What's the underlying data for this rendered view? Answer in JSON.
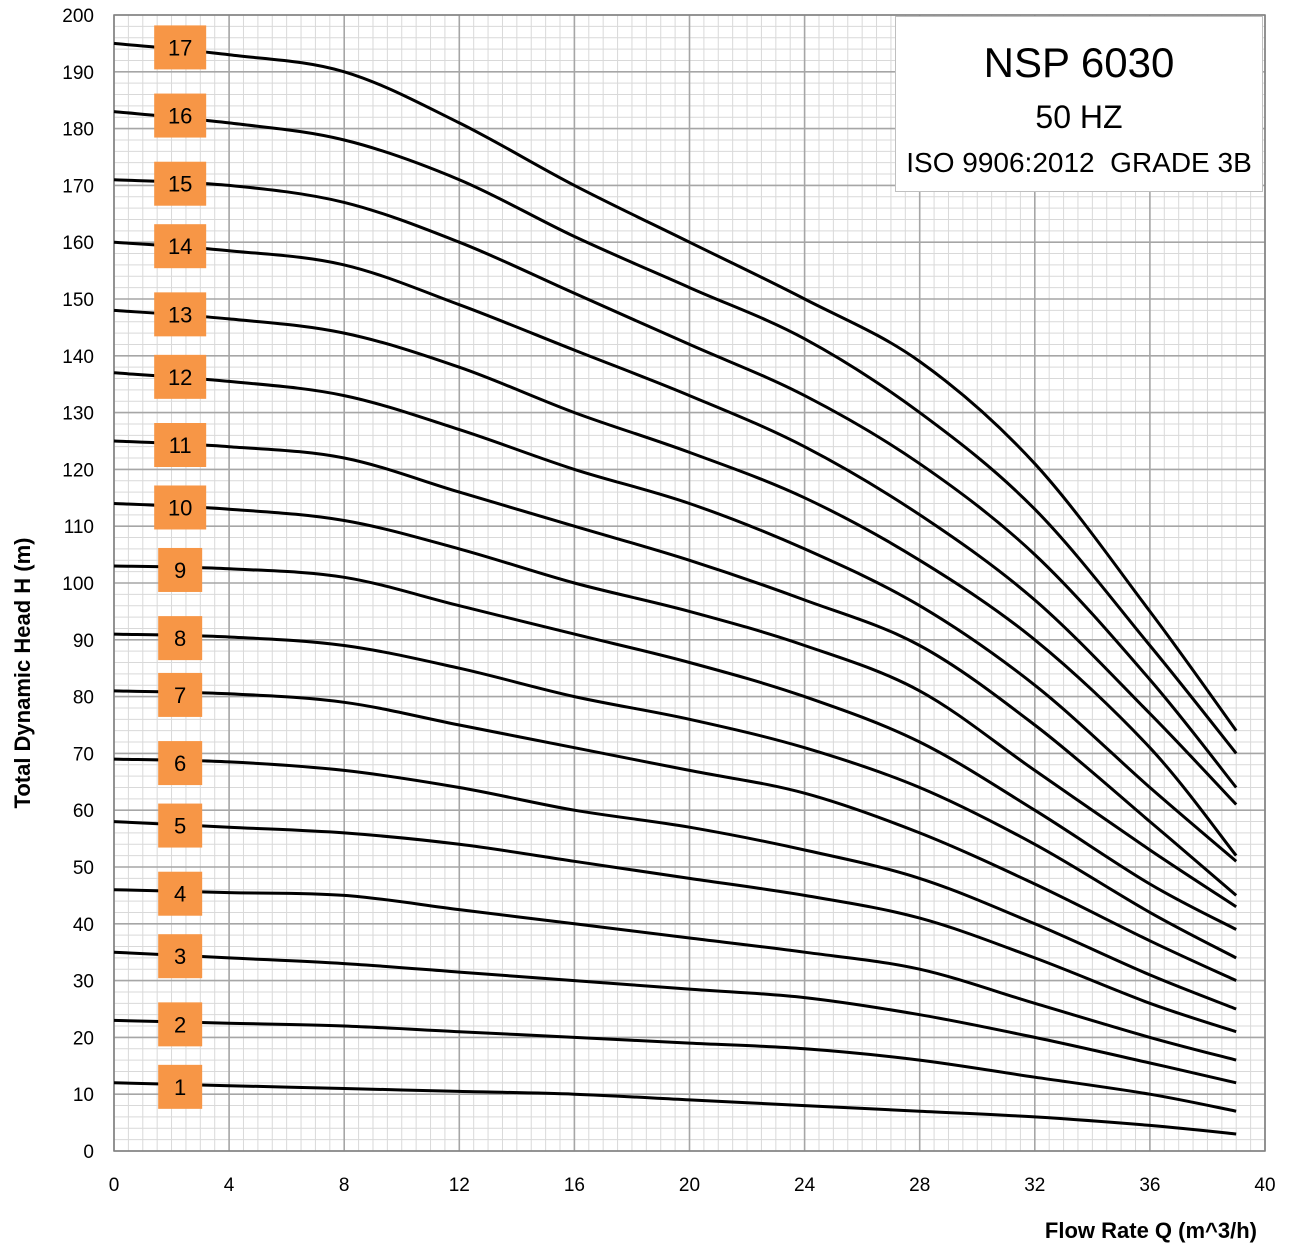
{
  "chart_data": {
    "type": "line",
    "title": "NSP 6030",
    "subtitle": "50 HZ",
    "standard": "ISO 9906:2012  GRADE 3B",
    "xlabel": "Flow Rate Q (m^3/h)",
    "ylabel": "Total Dynamic Head  H (m)",
    "xlim": [
      0,
      40
    ],
    "ylim": [
      0,
      200
    ],
    "x_ticks": [
      0,
      4,
      8,
      12,
      16,
      20,
      24,
      28,
      32,
      36,
      40
    ],
    "y_ticks": [
      0,
      10,
      20,
      30,
      40,
      50,
      60,
      70,
      80,
      90,
      100,
      110,
      120,
      130,
      140,
      150,
      160,
      170,
      180,
      190,
      200
    ],
    "grid": true,
    "legend": "stage number labels at left of each curve",
    "colors": {
      "line": "#000000",
      "label_bg": "#f79646",
      "major_grid": "#a6a6a6",
      "minor_grid": "#d9d9d9"
    },
    "x": [
      0,
      4,
      8,
      12,
      16,
      20,
      24,
      28,
      32,
      36,
      39
    ],
    "series": [
      {
        "name": "1",
        "values": [
          12,
          11.5,
          11,
          10.5,
          10,
          9,
          8,
          7,
          6,
          4.5,
          3
        ]
      },
      {
        "name": "2",
        "values": [
          23,
          22.5,
          22,
          21,
          20,
          19,
          18,
          16,
          13,
          10,
          7
        ]
      },
      {
        "name": "3",
        "values": [
          35,
          34,
          33,
          31.5,
          30,
          28.5,
          27,
          24,
          20,
          15.5,
          12
        ]
      },
      {
        "name": "4",
        "values": [
          46,
          45.5,
          45,
          42.5,
          40,
          37.5,
          35,
          32,
          26,
          20,
          16
        ]
      },
      {
        "name": "5",
        "values": [
          58,
          57,
          56,
          54,
          51,
          48,
          45,
          41,
          34,
          26,
          21
        ]
      },
      {
        "name": "6",
        "values": [
          69,
          68.5,
          67,
          64,
          60,
          57,
          53,
          48,
          40,
          31,
          25
        ]
      },
      {
        "name": "7",
        "values": [
          81,
          80.5,
          79,
          75,
          71,
          67,
          63,
          56,
          47,
          37,
          30
        ]
      },
      {
        "name": "8",
        "values": [
          91,
          90.5,
          89,
          85,
          80,
          76,
          71,
          64,
          54,
          42,
          34
        ]
      },
      {
        "name": "9",
        "values": [
          103,
          102.5,
          101,
          96,
          91,
          86,
          80,
          72,
          60,
          47,
          39
        ]
      },
      {
        "name": "10",
        "values": [
          114,
          113,
          111,
          106,
          100,
          95,
          89,
          81,
          67,
          53,
          43
        ]
      },
      {
        "name": "11",
        "values": [
          125,
          124,
          122,
          116,
          110,
          104,
          97,
          89,
          75,
          58,
          45
        ]
      },
      {
        "name": "12",
        "values": [
          137,
          135.5,
          133,
          127,
          120,
          114,
          106,
          96,
          82,
          64,
          51
        ]
      },
      {
        "name": "13",
        "values": [
          148,
          146.5,
          144,
          138,
          130,
          123,
          115,
          104,
          90,
          71,
          52
        ]
      },
      {
        "name": "14",
        "values": [
          160,
          158.5,
          156,
          149,
          141,
          133,
          124,
          112,
          97,
          77,
          61
        ]
      },
      {
        "name": "15",
        "values": [
          171,
          170,
          167,
          160,
          151,
          142,
          133,
          121,
          105,
          83,
          64
        ]
      },
      {
        "name": "16",
        "values": [
          183,
          181,
          178,
          171,
          161,
          152,
          143,
          130,
          113,
          89,
          70
        ]
      },
      {
        "name": "17",
        "values": [
          195,
          193,
          190,
          181,
          170,
          160,
          150,
          139,
          121,
          95,
          74
        ]
      }
    ],
    "stage_labels": [
      "1",
      "2",
      "3",
      "4",
      "5",
      "6",
      "7",
      "8",
      "9",
      "10",
      "11",
      "12",
      "13",
      "14",
      "15",
      "16",
      "17"
    ]
  }
}
